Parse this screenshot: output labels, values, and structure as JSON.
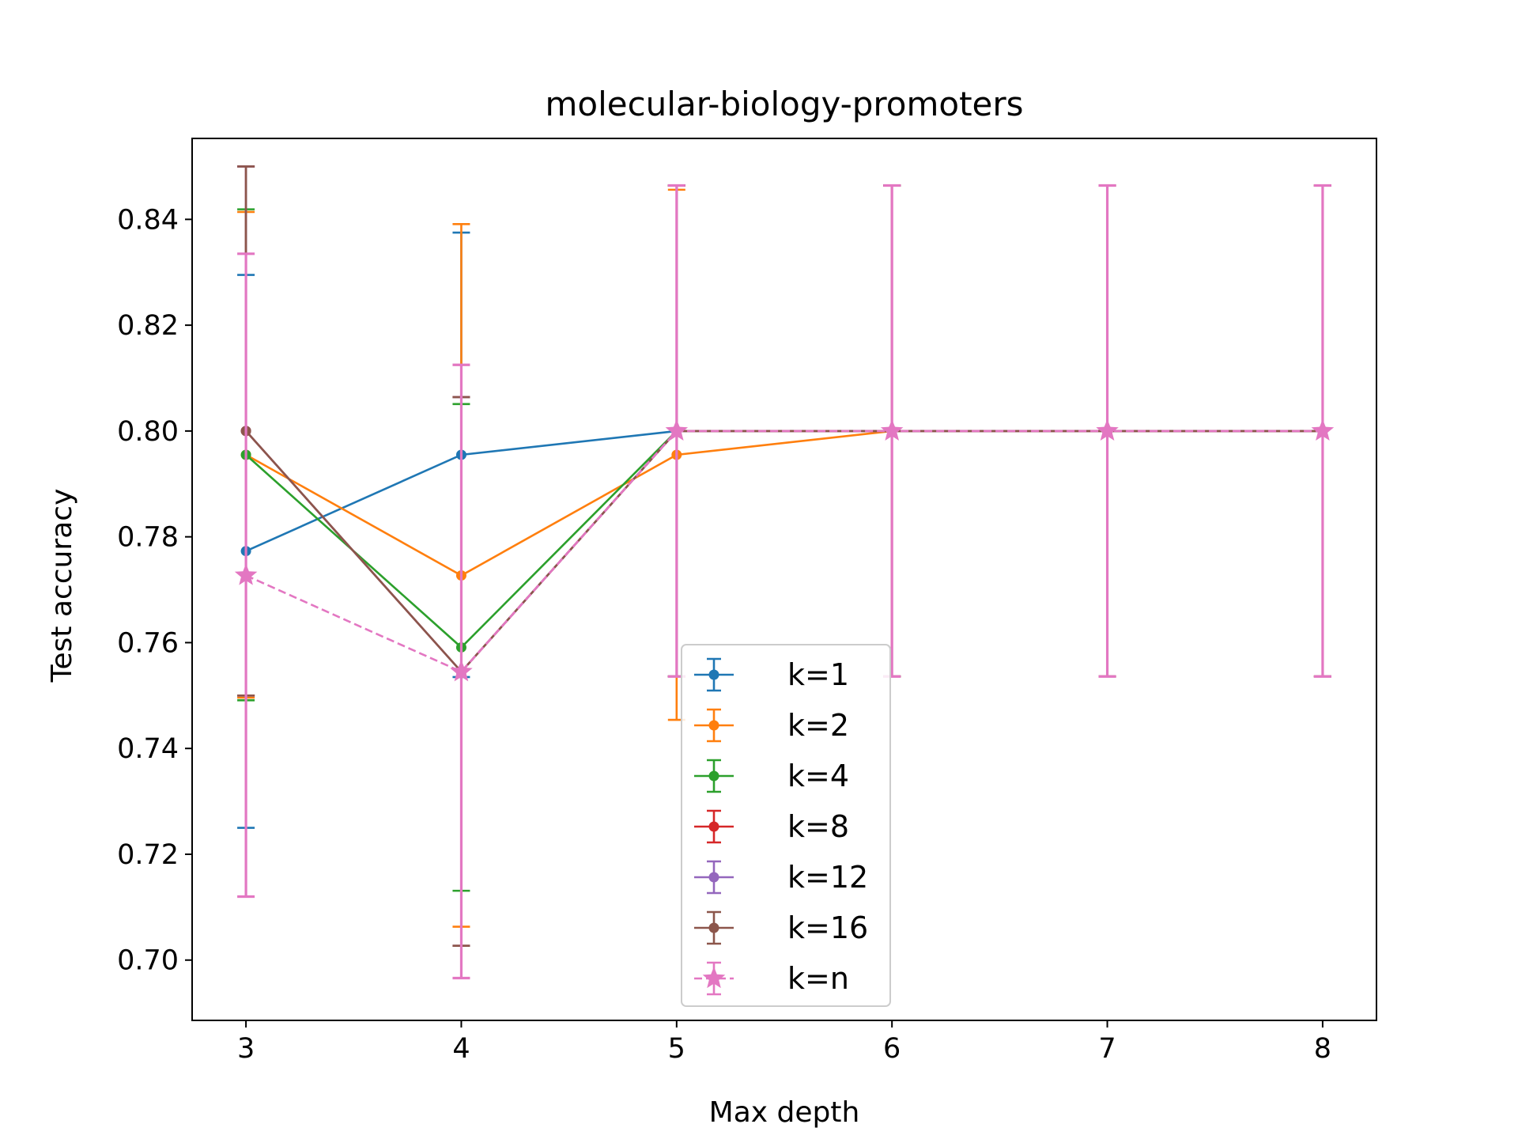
{
  "chart_data": {
    "type": "line",
    "title": "molecular-biology-promoters",
    "xlabel": "Max depth",
    "ylabel": "Test accuracy",
    "x": [
      3,
      4,
      5,
      6,
      7,
      8
    ],
    "xlim": [
      2.75,
      8.25
    ],
    "ylim": [
      0.6886,
      0.8553
    ],
    "x_ticks": [
      "3",
      "4",
      "5",
      "6",
      "7",
      "8"
    ],
    "y_ticks": [
      "0.70",
      "0.72",
      "0.74",
      "0.76",
      "0.78",
      "0.80",
      "0.82",
      "0.84"
    ],
    "grid": false,
    "legend_position": "lower center",
    "series": [
      {
        "name": "k=1",
        "color": "#1f77b4",
        "marker": "circle",
        "linestyle": "solid",
        "values": [
          0.7773,
          0.7955,
          0.8,
          null,
          null,
          null
        ],
        "err_low": [
          0.725,
          0.7535,
          0.7536,
          null,
          null,
          null
        ],
        "err_high": [
          0.8295,
          0.8375,
          0.8464,
          null,
          null,
          null
        ]
      },
      {
        "name": "k=2",
        "color": "#ff7f0e",
        "marker": "circle",
        "linestyle": "solid",
        "values": [
          0.7955,
          0.7727,
          0.7955,
          0.8,
          0.8,
          0.8
        ],
        "err_low": [
          0.7496,
          0.7063,
          0.7454,
          0.7536,
          0.7536,
          0.7536
        ],
        "err_high": [
          0.8414,
          0.8391,
          0.8456,
          0.8464,
          0.8464,
          0.8464
        ]
      },
      {
        "name": "k=4",
        "color": "#2ca02c",
        "marker": "circle",
        "linestyle": "solid",
        "values": [
          0.7955,
          0.7591,
          0.8,
          0.8,
          0.8,
          0.8
        ],
        "err_low": [
          0.7491,
          0.7131,
          0.7536,
          0.7536,
          0.7536,
          0.7536
        ],
        "err_high": [
          0.8419,
          0.8051,
          0.8464,
          0.8464,
          0.8464,
          0.8464
        ]
      },
      {
        "name": "k=8",
        "color": "#d62728",
        "marker": "circle",
        "linestyle": "solid",
        "values": [
          0.8,
          0.7545,
          0.8,
          0.8,
          0.8,
          0.8
        ],
        "err_low": [
          0.75,
          0.7027,
          0.7536,
          0.7536,
          0.7536,
          0.7536
        ],
        "err_high": [
          0.85,
          0.8064,
          0.8464,
          0.8464,
          0.8464,
          0.8464
        ]
      },
      {
        "name": "k=12",
        "color": "#9467bd",
        "marker": "circle",
        "linestyle": "solid",
        "values": [
          0.8,
          0.7545,
          0.8,
          0.8,
          0.8,
          0.8
        ],
        "err_low": [
          0.75,
          0.7027,
          0.7536,
          0.7536,
          0.7536,
          0.7536
        ],
        "err_high": [
          0.85,
          0.8064,
          0.8464,
          0.8464,
          0.8464,
          0.8464
        ]
      },
      {
        "name": "k=16",
        "color": "#8c564b",
        "marker": "circle",
        "linestyle": "solid",
        "values": [
          0.8,
          0.7545,
          0.8,
          0.8,
          0.8,
          0.8
        ],
        "err_low": [
          0.75,
          0.7027,
          0.7536,
          0.7536,
          0.7536,
          0.7536
        ],
        "err_high": [
          0.85,
          0.8064,
          0.8464,
          0.8464,
          0.8464,
          0.8464
        ]
      },
      {
        "name": "k=n",
        "color": "#e377c2",
        "marker": "star",
        "linestyle": "dashed",
        "values": [
          0.7727,
          0.7545,
          0.8,
          0.8,
          0.8,
          0.8
        ],
        "err_low": [
          0.712,
          0.6966,
          0.7536,
          0.7536,
          0.7536,
          0.7536
        ],
        "err_high": [
          0.8335,
          0.8125,
          0.8464,
          0.8464,
          0.8464,
          0.8464
        ]
      }
    ]
  }
}
